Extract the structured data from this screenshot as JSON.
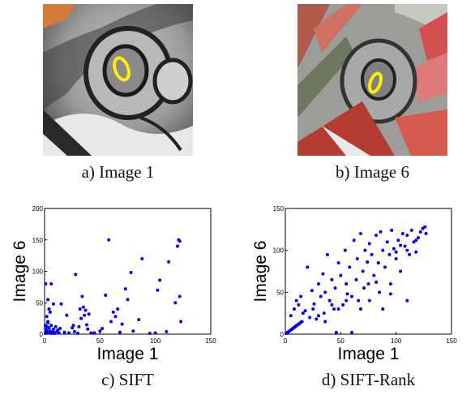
{
  "captions": {
    "a": "a) Image 1",
    "b": "b) Image 6",
    "c": "c) SIFT",
    "d": "d) SIFT-Rank"
  },
  "colors": {
    "ellipse": "#ffee00",
    "points": "#0000ee"
  },
  "chart_data": [
    {
      "type": "scatter",
      "title": "",
      "xlabel": "Image 1",
      "ylabel": "Image 6",
      "xlim": [
        0,
        150
      ],
      "ylim": [
        0,
        200
      ],
      "xticks": [
        "0",
        "50",
        "100",
        "150"
      ],
      "yticks": [
        "0",
        "50",
        "100",
        "150",
        "200"
      ],
      "grid": false,
      "points": [
        [
          0,
          1
        ],
        [
          1,
          3
        ],
        [
          2,
          6
        ],
        [
          3,
          2
        ],
        [
          4,
          10
        ],
        [
          5,
          5
        ],
        [
          6,
          14
        ],
        [
          7,
          3
        ],
        [
          8,
          8
        ],
        [
          9,
          1
        ],
        [
          10,
          12
        ],
        [
          11,
          4
        ],
        [
          12,
          7
        ],
        [
          13,
          2
        ],
        [
          14,
          9
        ],
        [
          2,
          12
        ],
        [
          3,
          20
        ],
        [
          1,
          80
        ],
        [
          6,
          80
        ],
        [
          3,
          55
        ],
        [
          4,
          40
        ],
        [
          8,
          48
        ],
        [
          5,
          35
        ],
        [
          2,
          28
        ],
        [
          3,
          18
        ],
        [
          1,
          8
        ],
        [
          0,
          14
        ],
        [
          4,
          2
        ],
        [
          6,
          0
        ],
        [
          8,
          3
        ],
        [
          15,
          48
        ],
        [
          20,
          30
        ],
        [
          22,
          2
        ],
        [
          25,
          10
        ],
        [
          27,
          4
        ],
        [
          28,
          95
        ],
        [
          30,
          1
        ],
        [
          31,
          12
        ],
        [
          33,
          25
        ],
        [
          34,
          60
        ],
        [
          35,
          43
        ],
        [
          36,
          30
        ],
        [
          37,
          38
        ],
        [
          38,
          15
        ],
        [
          39,
          8
        ],
        [
          40,
          32
        ],
        [
          42,
          2
        ],
        [
          45,
          2
        ],
        [
          50,
          5
        ],
        [
          52,
          9
        ],
        [
          55,
          62
        ],
        [
          58,
          150
        ],
        [
          60,
          20
        ],
        [
          62,
          35
        ],
        [
          64,
          28
        ],
        [
          66,
          40
        ],
        [
          68,
          3
        ],
        [
          70,
          16
        ],
        [
          73,
          72
        ],
        [
          75,
          55
        ],
        [
          78,
          98
        ],
        [
          80,
          5
        ],
        [
          85,
          23
        ],
        [
          88,
          120
        ],
        [
          95,
          1
        ],
        [
          100,
          2
        ],
        [
          102,
          70
        ],
        [
          104,
          86
        ],
        [
          110,
          4
        ],
        [
          112,
          115
        ],
        [
          118,
          50
        ],
        [
          120,
          140
        ],
        [
          121,
          150
        ],
        [
          122,
          148
        ],
        [
          123,
          20
        ],
        [
          122,
          60
        ],
        [
          18,
          3
        ],
        [
          26,
          14
        ],
        [
          32,
          40
        ]
      ]
    },
    {
      "type": "scatter",
      "title": "",
      "xlabel": "Image 1",
      "ylabel": "Image 6",
      "xlim": [
        0,
        150
      ],
      "ylim": [
        0,
        150
      ],
      "xticks": [
        "0",
        "50",
        "100",
        "150"
      ],
      "yticks": [
        "0",
        "50",
        "100",
        "150"
      ],
      "grid": false,
      "points": [
        [
          0,
          0
        ],
        [
          1,
          1
        ],
        [
          2,
          2
        ],
        [
          3,
          3
        ],
        [
          4,
          4
        ],
        [
          5,
          5
        ],
        [
          6,
          6
        ],
        [
          7,
          7
        ],
        [
          8,
          8
        ],
        [
          9,
          9
        ],
        [
          10,
          10
        ],
        [
          11,
          11
        ],
        [
          12,
          12
        ],
        [
          13,
          13
        ],
        [
          14,
          14
        ],
        [
          15,
          15
        ],
        [
          5,
          22
        ],
        [
          8,
          30
        ],
        [
          10,
          40
        ],
        [
          12,
          35
        ],
        [
          14,
          45
        ],
        [
          16,
          25
        ],
        [
          18,
          28
        ],
        [
          20,
          80
        ],
        [
          22,
          20
        ],
        [
          24,
          52
        ],
        [
          25,
          30
        ],
        [
          26,
          36
        ],
        [
          28,
          18
        ],
        [
          30,
          60
        ],
        [
          32,
          45
        ],
        [
          34,
          72
        ],
        [
          35,
          25
        ],
        [
          36,
          50
        ],
        [
          38,
          95
        ],
        [
          40,
          40
        ],
        [
          42,
          65
        ],
        [
          44,
          30
        ],
        [
          45,
          55
        ],
        [
          46,
          2
        ],
        [
          48,
          85
        ],
        [
          50,
          70
        ],
        [
          52,
          35
        ],
        [
          54,
          100
        ],
        [
          55,
          60
        ],
        [
          56,
          48
        ],
        [
          58,
          80
        ],
        [
          60,
          45
        ],
        [
          62,
          112
        ],
        [
          64,
          65
        ],
        [
          65,
          90
        ],
        [
          66,
          40
        ],
        [
          68,
          120
        ],
        [
          70,
          75
        ],
        [
          71,
          55
        ],
        [
          72,
          100
        ],
        [
          74,
          86
        ],
        [
          75,
          60
        ],
        [
          76,
          108
        ],
        [
          78,
          95
        ],
        [
          80,
          70
        ],
        [
          82,
          118
        ],
        [
          84,
          85
        ],
        [
          85,
          50
        ],
        [
          86,
          122
        ],
        [
          88,
          100
        ],
        [
          90,
          80
        ],
        [
          92,
          110
        ],
        [
          94,
          95
        ],
        [
          95,
          60
        ],
        [
          96,
          124
        ],
        [
          98,
          102
        ],
        [
          100,
          90
        ],
        [
          102,
          112
        ],
        [
          104,
          75
        ],
        [
          106,
          120
        ],
        [
          108,
          105
        ],
        [
          110,
          118
        ],
        [
          112,
          95
        ],
        [
          114,
          124
        ],
        [
          116,
          110
        ],
        [
          118,
          98
        ],
        [
          120,
          115
        ],
        [
          122,
          122
        ],
        [
          124,
          126
        ],
        [
          126,
          128
        ],
        [
          127,
          120
        ],
        [
          118,
          112
        ],
        [
          110,
          100
        ],
        [
          104,
          106
        ],
        [
          100,
          98
        ],
        [
          95,
          48
        ],
        [
          88,
          30
        ],
        [
          82,
          62
        ],
        [
          76,
          40
        ],
        [
          68,
          30
        ],
        [
          60,
          2
        ],
        [
          55,
          40
        ],
        [
          48,
          30
        ],
        [
          42,
          35
        ],
        [
          36,
          15
        ],
        [
          30,
          22
        ],
        [
          110,
          40
        ]
      ]
    }
  ]
}
